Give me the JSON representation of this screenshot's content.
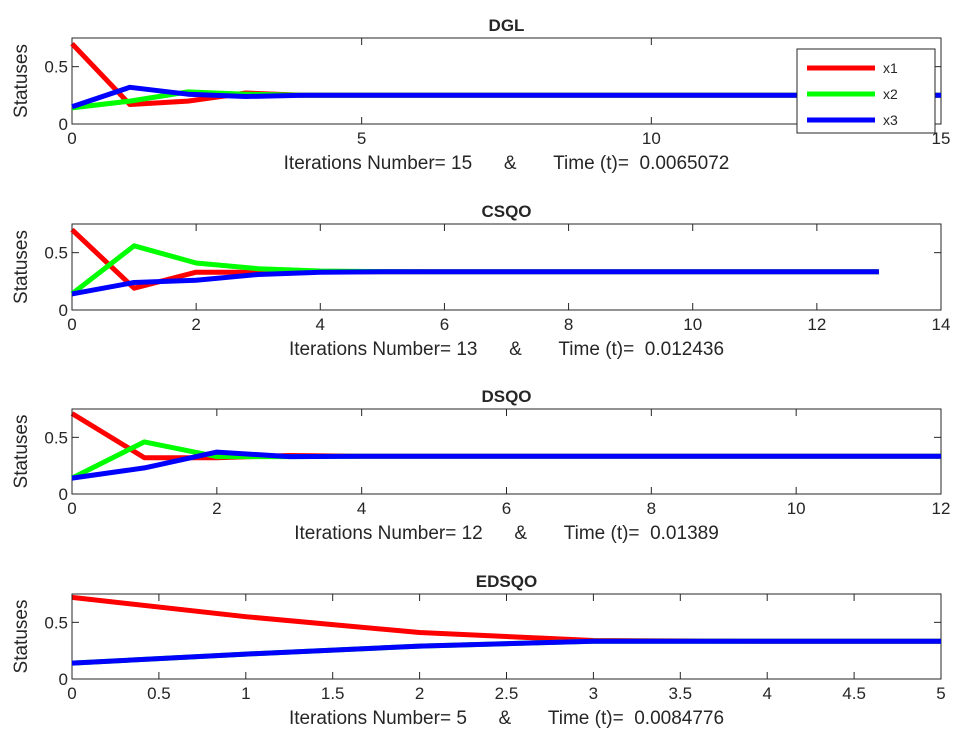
{
  "chart_data": [
    {
      "type": "line",
      "title": "DGL",
      "ylabel": "Statuses",
      "xlabel": "Iterations Number= 15      &       Time (t)=  0.0065072",
      "xlim": [
        0,
        15
      ],
      "ylim": [
        0,
        0.75
      ],
      "xticks": [
        0,
        5,
        10,
        15
      ],
      "xtick_labels": [
        "0",
        "5",
        "10",
        "15"
      ],
      "yticks": [
        0,
        0.5
      ],
      "ytick_labels": [
        "0",
        "0.5"
      ],
      "legend": {
        "position": "top-right",
        "entries": [
          "x1",
          "x2",
          "x3"
        ]
      },
      "series": [
        {
          "name": "x1",
          "color": "#ff0000",
          "x": [
            0,
            1,
            2,
            3,
            4,
            5,
            6,
            7,
            8,
            9,
            10,
            11,
            12,
            13,
            14,
            15
          ],
          "values": [
            0.7,
            0.17,
            0.2,
            0.27,
            0.25,
            0.25,
            0.25,
            0.25,
            0.25,
            0.25,
            0.25,
            0.25,
            0.25,
            0.25,
            0.25,
            0.25
          ]
        },
        {
          "name": "x2",
          "color": "#00ff00",
          "x": [
            0,
            1,
            2,
            3,
            4,
            5,
            6,
            7,
            8,
            9,
            10,
            11,
            12,
            13,
            14,
            15
          ],
          "values": [
            0.14,
            0.2,
            0.28,
            0.26,
            0.25,
            0.25,
            0.25,
            0.25,
            0.25,
            0.25,
            0.25,
            0.25,
            0.25,
            0.25,
            0.25,
            0.25
          ]
        },
        {
          "name": "x3",
          "color": "#0000ff",
          "x": [
            0,
            1,
            2,
            3,
            4,
            5,
            6,
            7,
            8,
            9,
            10,
            11,
            12,
            13,
            14,
            15
          ],
          "values": [
            0.15,
            0.32,
            0.26,
            0.24,
            0.25,
            0.25,
            0.25,
            0.25,
            0.25,
            0.25,
            0.25,
            0.25,
            0.25,
            0.25,
            0.25,
            0.25
          ]
        }
      ]
    },
    {
      "type": "line",
      "title": "CSQO",
      "ylabel": "Statuses",
      "xlabel": "Iterations Number= 13      &       Time (t)=  0.012436",
      "xlim": [
        0,
        14
      ],
      "ylim": [
        0,
        0.75
      ],
      "xticks": [
        0,
        2,
        4,
        6,
        8,
        10,
        12,
        14
      ],
      "xtick_labels": [
        "0",
        "2",
        "4",
        "6",
        "8",
        "10",
        "12",
        "14"
      ],
      "yticks": [
        0,
        0.5
      ],
      "ytick_labels": [
        "0",
        "0.5"
      ],
      "series": [
        {
          "name": "x1",
          "color": "#ff0000",
          "x": [
            0,
            1,
            2,
            3,
            4,
            5,
            6,
            7,
            8,
            9,
            10,
            11,
            12,
            13
          ],
          "values": [
            0.7,
            0.19,
            0.33,
            0.33,
            0.333,
            0.333,
            0.333,
            0.333,
            0.333,
            0.333,
            0.333,
            0.333,
            0.333,
            0.333
          ]
        },
        {
          "name": "x2",
          "color": "#00ff00",
          "x": [
            0,
            1,
            2,
            3,
            4,
            5,
            6,
            7,
            8,
            9,
            10,
            11,
            12,
            13
          ],
          "values": [
            0.14,
            0.56,
            0.41,
            0.36,
            0.34,
            0.335,
            0.333,
            0.333,
            0.333,
            0.333,
            0.333,
            0.333,
            0.333,
            0.333
          ]
        },
        {
          "name": "x3",
          "color": "#0000ff",
          "x": [
            0,
            1,
            2,
            3,
            4,
            5,
            6,
            7,
            8,
            9,
            10,
            11,
            12,
            13
          ],
          "values": [
            0.14,
            0.24,
            0.26,
            0.31,
            0.33,
            0.333,
            0.333,
            0.333,
            0.333,
            0.333,
            0.333,
            0.333,
            0.333,
            0.333
          ]
        }
      ]
    },
    {
      "type": "line",
      "title": "DSQO",
      "ylabel": "Statuses",
      "xlabel": "Iterations Number= 12      &       Time (t)=  0.01389",
      "xlim": [
        0,
        12
      ],
      "ylim": [
        0,
        0.75
      ],
      "xticks": [
        0,
        2,
        4,
        6,
        8,
        10,
        12
      ],
      "xtick_labels": [
        "0",
        "2",
        "4",
        "6",
        "8",
        "10",
        "12"
      ],
      "yticks": [
        0,
        0.5
      ],
      "ytick_labels": [
        "0",
        "0.5"
      ],
      "series": [
        {
          "name": "x1",
          "color": "#ff0000",
          "x": [
            0,
            1,
            2,
            3,
            4,
            5,
            6,
            7,
            8,
            9,
            10,
            11,
            12
          ],
          "values": [
            0.71,
            0.32,
            0.32,
            0.34,
            0.333,
            0.333,
            0.333,
            0.333,
            0.333,
            0.333,
            0.333,
            0.333,
            0.333
          ]
        },
        {
          "name": "x2",
          "color": "#00ff00",
          "x": [
            0,
            1,
            2,
            3,
            4,
            5,
            6,
            7,
            8,
            9,
            10,
            11,
            12
          ],
          "values": [
            0.14,
            0.46,
            0.33,
            0.33,
            0.333,
            0.333,
            0.333,
            0.333,
            0.333,
            0.333,
            0.333,
            0.333,
            0.333
          ]
        },
        {
          "name": "x3",
          "color": "#0000ff",
          "x": [
            0,
            1,
            2,
            3,
            4,
            5,
            6,
            7,
            8,
            9,
            10,
            11,
            12
          ],
          "values": [
            0.14,
            0.23,
            0.37,
            0.33,
            0.333,
            0.333,
            0.333,
            0.333,
            0.333,
            0.333,
            0.333,
            0.333,
            0.333
          ]
        }
      ]
    },
    {
      "type": "line",
      "title": "EDSQO",
      "ylabel": "Statuses",
      "xlabel": "Iterations Number= 5      &       Time (t)=  0.0084776",
      "xlim": [
        0,
        5
      ],
      "ylim": [
        0,
        0.75
      ],
      "xticks": [
        0,
        0.5,
        1,
        1.5,
        2,
        2.5,
        3,
        3.5,
        4,
        4.5,
        5
      ],
      "xtick_labels": [
        "0",
        "0.5",
        "1",
        "1.5",
        "2",
        "2.5",
        "3",
        "3.5",
        "4",
        "4.5",
        "5"
      ],
      "yticks": [
        0,
        0.5
      ],
      "ytick_labels": [
        "0",
        "0.5"
      ],
      "series": [
        {
          "name": "x1",
          "color": "#ff0000",
          "x": [
            0,
            1,
            2,
            3,
            4,
            5
          ],
          "values": [
            0.72,
            0.55,
            0.41,
            0.34,
            0.333,
            0.333
          ]
        },
        {
          "name": "x2",
          "color": "#00ff00",
          "x": [
            0,
            1,
            2,
            3,
            4,
            5
          ],
          "values": [
            0.14,
            0.22,
            0.29,
            0.333,
            0.333,
            0.333
          ]
        },
        {
          "name": "x3",
          "color": "#0000ff",
          "x": [
            0,
            1,
            2,
            3,
            4,
            5
          ],
          "values": [
            0.14,
            0.22,
            0.29,
            0.333,
            0.333,
            0.333
          ]
        }
      ]
    }
  ]
}
